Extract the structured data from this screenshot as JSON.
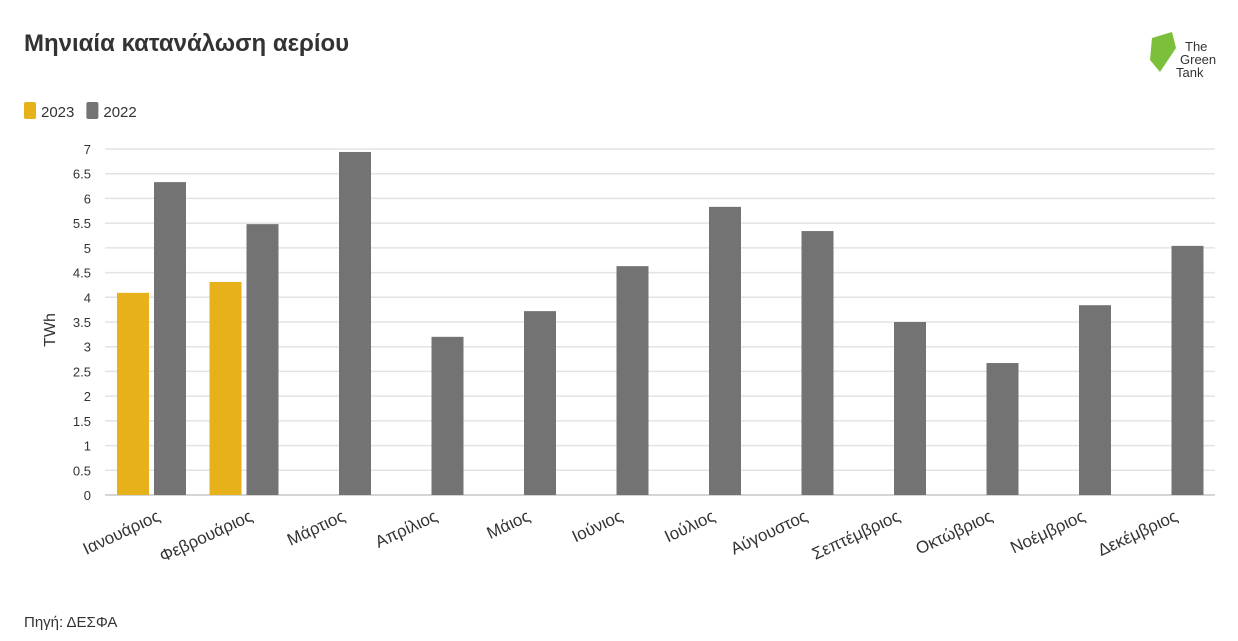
{
  "chart_data": {
    "type": "bar",
    "title": "Μηνιαία κατανάλωση αερίου",
    "y_label": "TWh",
    "source": "Πηγή: ΔΕΣΦΑ",
    "logo": [
      "The",
      "Green",
      "Tank"
    ],
    "categories": [
      "Ιανουάριος",
      "Φεβρουάριος",
      "Μάρτιος",
      "Απρίλιος",
      "Μάιος",
      "Ιούνιος",
      "Ιούλιος",
      "Αύγουστος",
      "Σεπτέμβριος",
      "Οκτώβριος",
      "Νοέμβριος",
      "Δεκέμβριος"
    ],
    "series": [
      {
        "name": "2023",
        "color": "#e6b11a",
        "values": [
          4.09,
          4.31,
          null,
          null,
          null,
          null,
          null,
          null,
          null,
          null,
          null,
          null
        ]
      },
      {
        "name": "2022",
        "color": "#737373",
        "values": [
          6.33,
          5.48,
          6.94,
          3.2,
          3.72,
          4.63,
          5.83,
          5.34,
          3.5,
          2.67,
          3.84,
          5.04
        ]
      }
    ],
    "ylim": [
      0,
      7
    ],
    "yticks": [
      0,
      0.5,
      1,
      1.5,
      2,
      2.5,
      3,
      3.5,
      4,
      4.5,
      5,
      5.5,
      6,
      6.5,
      7
    ],
    "grid": true
  }
}
